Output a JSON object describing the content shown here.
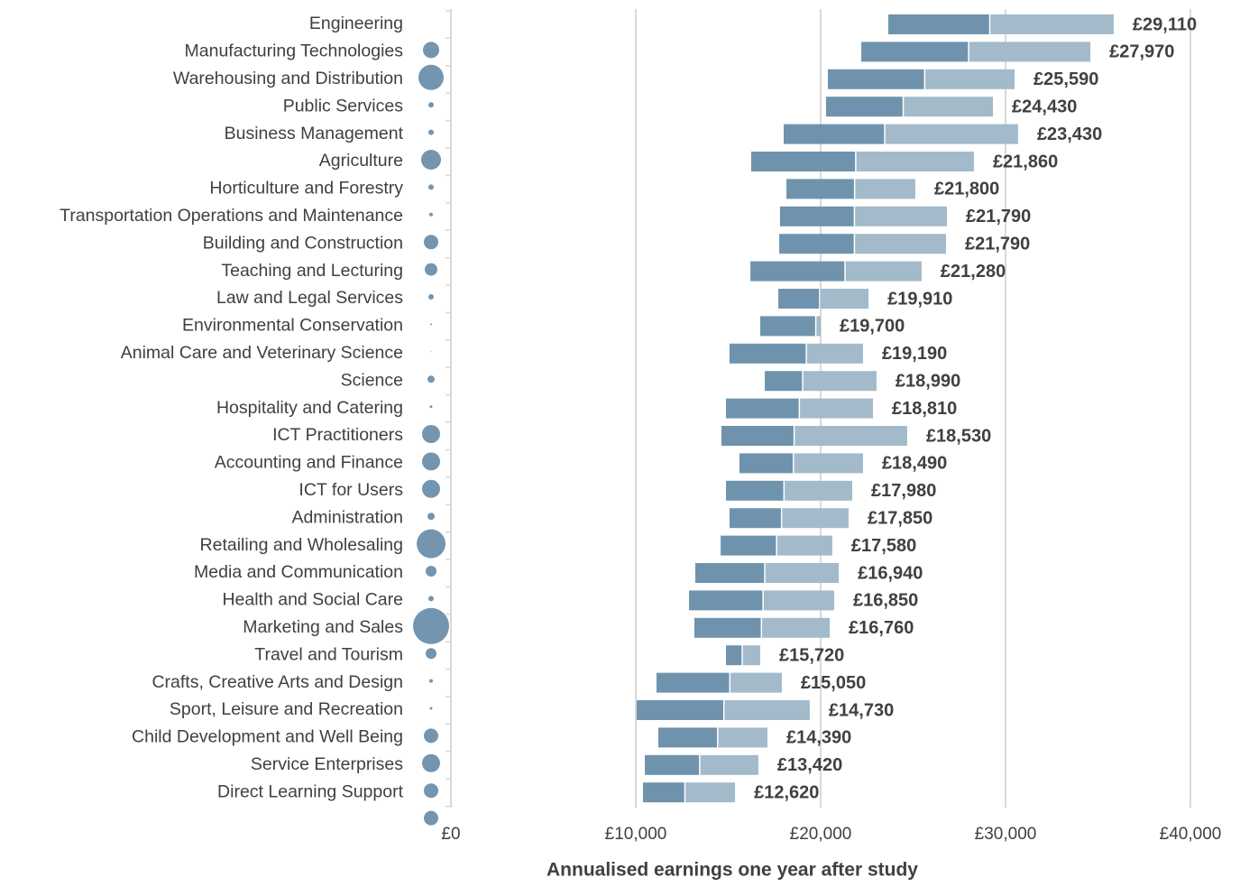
{
  "chart_data": {
    "type": "range_bar",
    "x_label": "Annualised earnings one year after study",
    "categories": [
      "Engineering",
      "Manufacturing Technologies",
      "Warehousing and Distribution",
      "Public Services",
      "Business Management",
      "Agriculture",
      "Horticulture and Forestry",
      "Transportation Operations and Maintenance",
      "Building and Construction",
      "Teaching and Lecturing",
      "Law and Legal Services",
      "Environmental Conservation",
      "Animal Care and Veterinary Science",
      "Science",
      "Hospitality and Catering",
      "ICT Practitioners",
      "Accounting and Finance",
      "ICT for Users",
      "Administration",
      "Retailing and Wholesaling",
      "Media and Communication",
      "Health and Social Care",
      "Marketing and Sales",
      "Travel and Tourism",
      "Crafts, Creative Arts and Design",
      "Sport, Leisure and Recreation",
      "Child Development and Well Being",
      "Service Enterprises",
      "Direct Learning Support"
    ],
    "lower": [
      23660,
      22200,
      20390,
      20290,
      18000,
      16240,
      18150,
      17800,
      17760,
      16200,
      17710,
      16730,
      15070,
      16980,
      14880,
      14630,
      15610,
      14880,
      15070,
      14590,
      13220,
      12880,
      13170,
      14880,
      11120,
      10050,
      11220,
      10490,
      10390
    ],
    "values": [
      29110,
      27970,
      25590,
      24430,
      23430,
      21860,
      21800,
      21790,
      21790,
      21280,
      19910,
      19700,
      19190,
      18990,
      18810,
      18530,
      18490,
      17980,
      17850,
      17580,
      16940,
      16850,
      16760,
      15720,
      15050,
      14730,
      14390,
      13420,
      12620
    ],
    "value_labels": [
      "£29,110",
      "£27,970",
      "£25,590",
      "£24,430",
      "£23,430",
      "£21,860",
      "£21,800",
      "£21,790",
      "£21,790",
      "£21,280",
      "£19,910",
      "£19,700",
      "£19,190",
      "£18,990",
      "£18,810",
      "£18,530",
      "£18,490",
      "£17,980",
      "£17,850",
      "£17,580",
      "£16,940",
      "£16,850",
      "£16,760",
      "£15,720",
      "£15,050",
      "£14,730",
      "£14,390",
      "£13,420",
      "£12,620"
    ],
    "upper": [
      35850,
      34590,
      30490,
      29320,
      30680,
      28290,
      25120,
      26830,
      26780,
      25460,
      22590,
      20000,
      22290,
      23020,
      22830,
      24680,
      22290,
      21710,
      21510,
      20630,
      20980,
      20730,
      20490,
      16730,
      17900,
      19410,
      17120,
      16630,
      15370
    ],
    "sizes": [
      9,
      14,
      3,
      3,
      11,
      3,
      2,
      8,
      7,
      3,
      1,
      0.5,
      4,
      1.5,
      10,
      10,
      10,
      4,
      16,
      6,
      3,
      20,
      6,
      2,
      1.5,
      8,
      10,
      8,
      8
    ],
    "colors": {
      "lower": "#6f93ad",
      "upper": "#a3bacb",
      "bubble": "#7395b0"
    },
    "xlim": [
      0,
      40000
    ],
    "xticks": [
      {
        "value": 0,
        "label": "£0"
      },
      {
        "value": 10000,
        "label": "£10,000"
      },
      {
        "value": 20000,
        "label": "£20,000"
      },
      {
        "value": 30000,
        "label": "£30,000"
      },
      {
        "value": 40000,
        "label": "£40,000"
      }
    ],
    "grid": true
  }
}
